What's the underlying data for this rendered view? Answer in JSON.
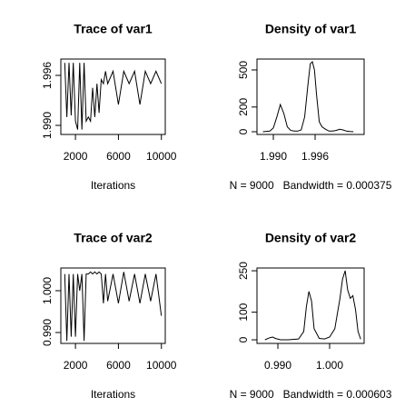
{
  "chart_data": [
    {
      "type": "line",
      "title": "Trace of var1",
      "x_label": "Iterations",
      "color": "#000000",
      "x": [
        1001,
        1200,
        1400,
        1600,
        1800,
        2000,
        2200,
        2400,
        2600,
        2800,
        3000,
        3200,
        3400,
        3600,
        3800,
        4000,
        4200,
        4400,
        4600,
        4800,
        5000,
        5500,
        6000,
        6500,
        7000,
        7500,
        8000,
        8500,
        9000,
        9500,
        10000
      ],
      "values": [
        1.9975,
        1.991,
        1.9975,
        1.9912,
        1.9975,
        1.9905,
        1.9895,
        1.9975,
        1.9895,
        1.9975,
        1.9905,
        1.991,
        1.9905,
        1.9945,
        1.991,
        1.995,
        1.9915,
        1.9955,
        1.995,
        1.9965,
        1.995,
        1.9965,
        1.9925,
        1.9965,
        1.995,
        1.9965,
        1.9925,
        1.9965,
        1.995,
        1.9965,
        1.995
      ],
      "xlim": [
        640,
        10360
      ],
      "ylim": [
        1.98891,
        1.99796
      ],
      "xticks": [
        2000,
        6000,
        10000
      ],
      "yticks": [
        {
          "value": 1.99,
          "label": "1.990"
        },
        1.996
      ]
    },
    {
      "type": "line",
      "title": "Density of var1",
      "x_label": "N = 9000   Bandwidth = 0.000375",
      "color": "#000000",
      "x": [
        1.9885,
        1.9895,
        1.99,
        1.9905,
        1.991,
        1.9915,
        1.992,
        1.9925,
        1.993,
        1.9935,
        1.994,
        1.9945,
        1.995,
        1.9953,
        1.9956,
        1.9959,
        1.9962,
        1.9966,
        1.997,
        1.9975,
        1.998,
        1.9985,
        1.999,
        1.9995,
        2.0,
        2.0005,
        2.001,
        2.0015
      ],
      "values": [
        0,
        5,
        30,
        120,
        220,
        150,
        40,
        10,
        5,
        5,
        15,
        120,
        400,
        550,
        566,
        500,
        300,
        80,
        40,
        20,
        5,
        5,
        10,
        20,
        15,
        5,
        2,
        0
      ],
      "xlim": [
        1.98765,
        2.00304
      ],
      "ylim": [
        -22,
        588
      ],
      "xticks": [
        {
          "value": 1.99,
          "label": "1.990"
        },
        1.996
      ],
      "yticks": [
        0,
        200,
        500
      ]
    },
    {
      "type": "line",
      "title": "Trace of var2",
      "x_label": "Iterations",
      "color": "#000000",
      "x": [
        1001,
        1200,
        1400,
        1600,
        1800,
        2000,
        2200,
        2400,
        2600,
        2800,
        3000,
        3200,
        3400,
        3600,
        3800,
        4000,
        4200,
        4400,
        4600,
        4800,
        5000,
        5500,
        6000,
        6500,
        7000,
        7500,
        8000,
        8500,
        9000,
        9500,
        10000
      ],
      "values": [
        1.004,
        0.988,
        1.004,
        0.989,
        1.004,
        0.989,
        1.004,
        1.0,
        1.004,
        0.988,
        1.004,
        1.004,
        1.0045,
        1.004,
        1.0045,
        1.004,
        1.0045,
        1.004,
        0.997,
        1.004,
        0.9975,
        1.004,
        0.997,
        1.0045,
        0.9975,
        1.004,
        0.997,
        1.004,
        0.9975,
        1.004,
        0.994
      ],
      "xlim": [
        640,
        10360
      ],
      "ylim": [
        0.98739,
        1.00543
      ],
      "xticks": [
        2000,
        6000,
        10000
      ],
      "yticks": [
        {
          "value": 0.99,
          "label": "0.990"
        },
        {
          "value": 1.0,
          "label": "1.000"
        }
      ]
    },
    {
      "type": "line",
      "title": "Density of var2",
      "x_label": "N = 9000   Bandwidth = 0.000603",
      "color": "#000000",
      "x": [
        0.9875,
        0.9885,
        0.989,
        0.9895,
        0.9905,
        0.992,
        0.994,
        0.995,
        0.9955,
        0.996,
        0.9965,
        0.997,
        0.998,
        0.999,
        1.0,
        1.001,
        1.002,
        1.0025,
        1.003,
        1.0035,
        1.004,
        1.0045,
        1.005,
        1.0055,
        1.006
      ],
      "values": [
        0,
        8,
        10,
        5,
        0,
        0,
        3,
        30,
        120,
        175,
        140,
        40,
        5,
        3,
        10,
        40,
        150,
        220,
        250,
        180,
        150,
        160,
        110,
        30,
        2
      ],
      "xlim": [
        0.98596,
        1.00667
      ],
      "ylim": [
        -13,
        260
      ],
      "xticks": [
        {
          "value": 0.99,
          "label": "0.990"
        },
        {
          "value": 1.0,
          "label": "1.000"
        }
      ],
      "yticks": [
        0,
        100,
        250
      ]
    }
  ]
}
